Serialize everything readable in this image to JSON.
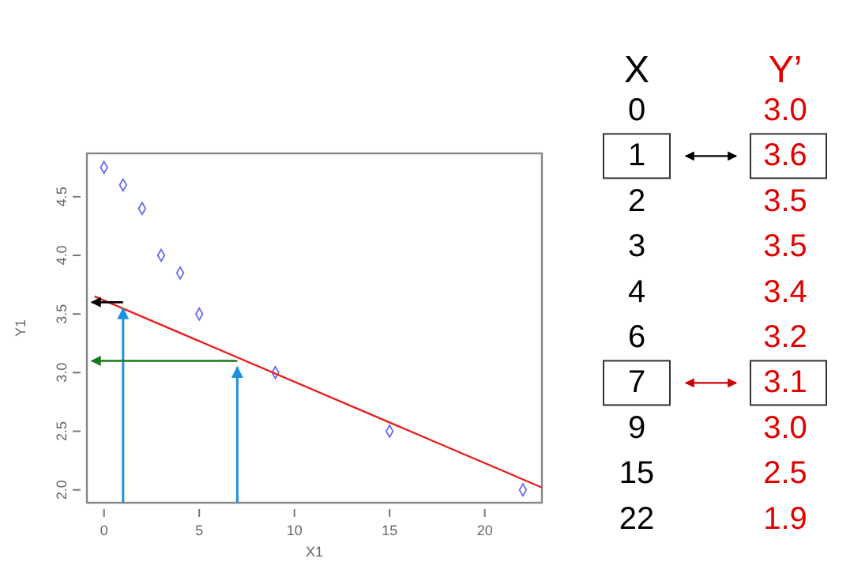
{
  "chart_data": [
    {
      "type": "scatter",
      "xlabel": "X1",
      "ylabel": "Y1",
      "xlim": [
        -0.9,
        23
      ],
      "ylim": [
        1.89,
        4.87
      ],
      "xticks": [
        0,
        5,
        10,
        15,
        20
      ],
      "yticks": [
        {
          "value": 2,
          "label": "2.0"
        },
        {
          "value": 2.5,
          "label": "2.5"
        },
        {
          "value": 3,
          "label": "3.0"
        },
        {
          "value": 3.5,
          "label": "3.5"
        },
        {
          "value": 4,
          "label": "4.0"
        },
        {
          "value": 4.5,
          "label": "4.5"
        }
      ],
      "series": [
        {
          "type": "scatter",
          "marker": "diamond",
          "color": "#6a6af0",
          "x": [
            0,
            1,
            2,
            3,
            4,
            5,
            9,
            15,
            22
          ],
          "values": [
            4.75,
            4.6,
            4.4,
            4.0,
            3.85,
            3.5,
            3.0,
            2.5,
            2.0
          ]
        },
        {
          "type": "line",
          "color": "#e82020",
          "x": [
            -0.5,
            23
          ],
          "values": [
            3.65,
            2.02
          ]
        }
      ]
    },
    {
      "type": "other",
      "xlabel": "X",
      "ylabel": "Y’",
      "color": "#e00000",
      "categories": [
        "0",
        "1",
        "2",
        "3",
        "4",
        "6",
        "7",
        "9",
        "15",
        "22"
      ],
      "value_labels": [
        "3.0",
        "3.6",
        "3.5",
        "3.5",
        "3.4",
        "3.2",
        "3.1",
        "3.0",
        "2.5",
        "1.9"
      ]
    }
  ]
}
